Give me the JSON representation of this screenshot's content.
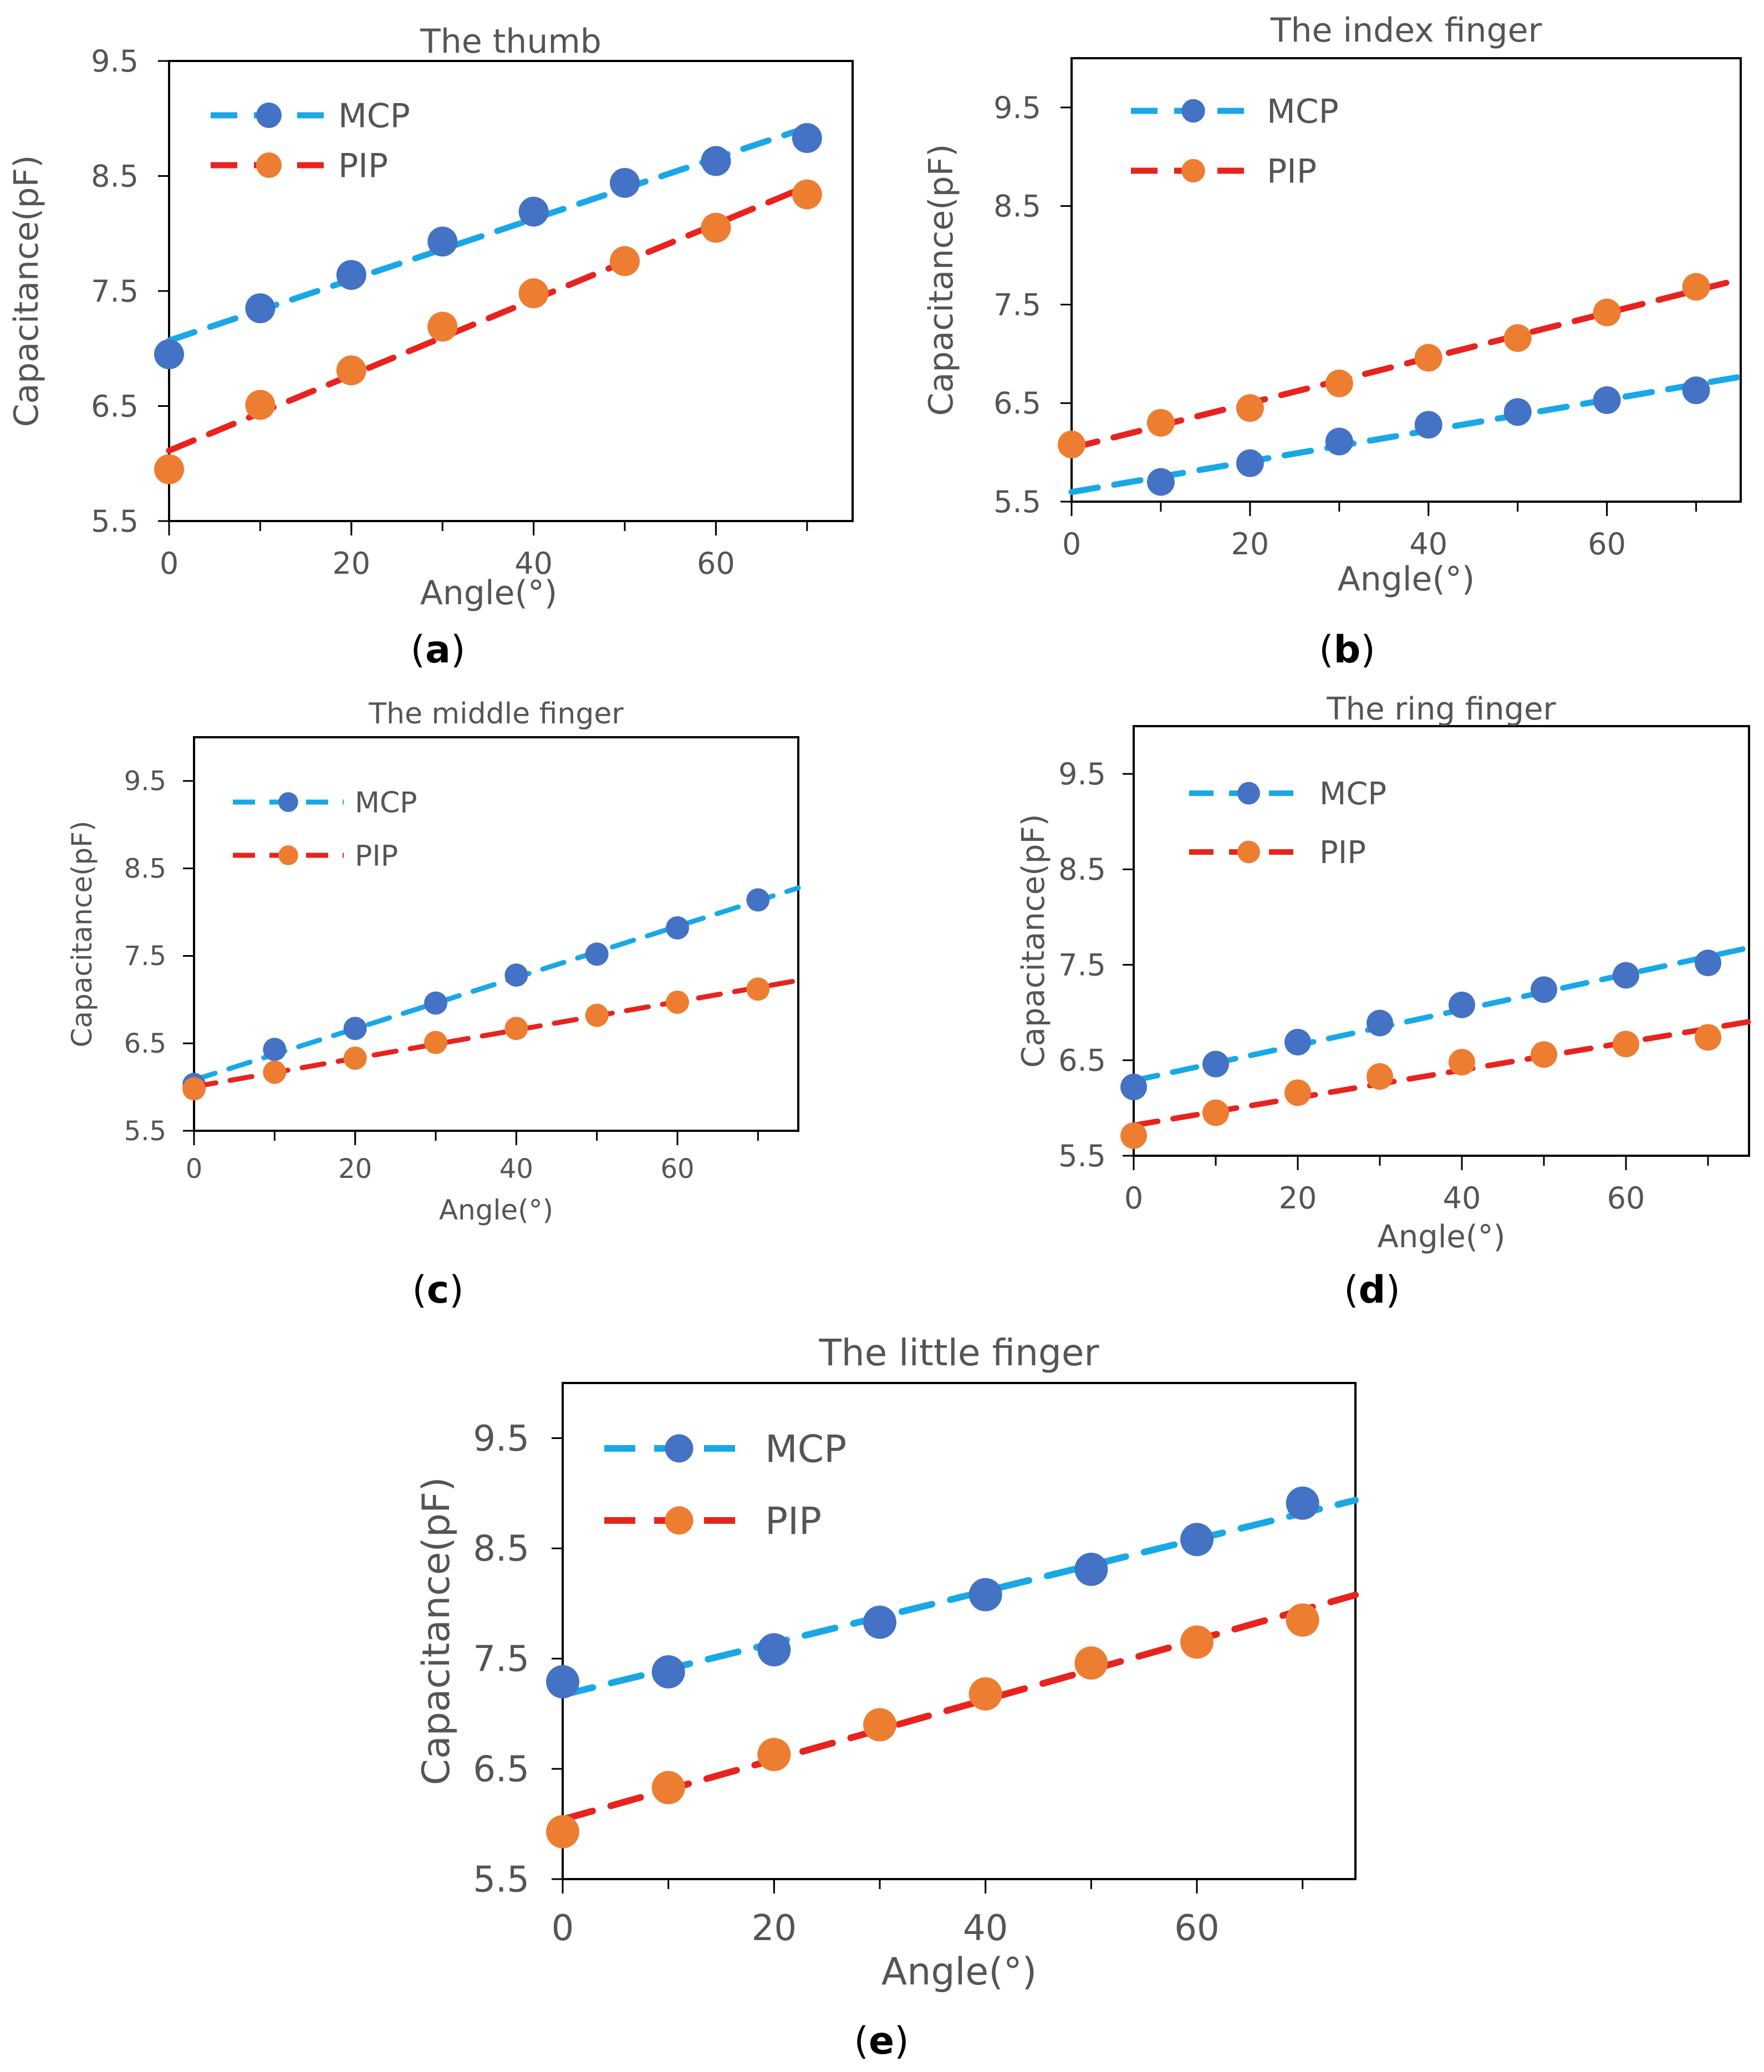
{
  "figure": {
    "panel_labels": [
      "a",
      "b",
      "c",
      "d",
      "e"
    ]
  },
  "chart_data": [
    {
      "type": "scatter",
      "panel": "a",
      "title": "The thumb",
      "xlabel": "Angle(°)",
      "ylabel": "Capacitance(pF)",
      "xlim": [
        0,
        75
      ],
      "ylim": [
        5.5,
        9.5
      ],
      "xticks": [
        "0",
        "20",
        "40",
        "60"
      ],
      "yticks": [
        "5.5",
        "6.5",
        "7.5",
        "8.5",
        "9.5"
      ],
      "x": [
        0,
        10,
        20,
        30,
        40,
        50,
        60,
        70
      ],
      "legend_position": "top-left",
      "series": [
        {
          "name": "MCP",
          "marker_color": "#4472c4",
          "line_color": "#19a8e6",
          "values": [
            6.95,
            7.35,
            7.64,
            7.93,
            8.19,
            8.44,
            8.63,
            8.83
          ]
        },
        {
          "name": "PIP",
          "marker_color": "#ed7d31",
          "line_color": "#e8231e",
          "values": [
            5.95,
            6.51,
            6.81,
            7.19,
            7.48,
            7.76,
            8.05,
            8.34
          ]
        }
      ]
    },
    {
      "type": "scatter",
      "panel": "b",
      "title": "The index finger",
      "xlabel": "Angle(°)",
      "ylabel": "Capacitance(pF)",
      "xlim": [
        0,
        75
      ],
      "ylim": [
        5.5,
        10
      ],
      "xticks": [
        "0",
        "20",
        "40",
        "60"
      ],
      "yticks": [
        "5.5",
        "6.5",
        "7.5",
        "8.5",
        "9.5"
      ],
      "x": [
        0,
        10,
        20,
        30,
        40,
        50,
        60,
        70
      ],
      "legend_position": "top-left",
      "series": [
        {
          "name": "MCP",
          "marker_color": "#4472c4",
          "line_color": "#19a8e6",
          "values": [
            null,
            5.7,
            5.89,
            6.11,
            6.28,
            6.41,
            6.53,
            6.63
          ]
        },
        {
          "name": "PIP",
          "marker_color": "#ed7d31",
          "line_color": "#e8231e",
          "values": [
            6.08,
            6.3,
            6.45,
            6.7,
            6.96,
            7.16,
            7.42,
            7.68
          ]
        }
      ]
    },
    {
      "type": "scatter",
      "panel": "c",
      "title": "The middle finger",
      "xlabel": "Angle(°)",
      "ylabel": "Capacitance(pF)",
      "xlim": [
        0,
        75
      ],
      "ylim": [
        5.5,
        10
      ],
      "xticks": [
        "0",
        "20",
        "40",
        "60"
      ],
      "yticks": [
        "5.5",
        "6.5",
        "7.5",
        "8.5",
        "9.5"
      ],
      "x": [
        0,
        10,
        20,
        30,
        40,
        50,
        60,
        70
      ],
      "legend_position": "top-left",
      "series": [
        {
          "name": "MCP",
          "marker_color": "#4472c4",
          "line_color": "#19a8e6",
          "values": [
            6.03,
            6.43,
            6.67,
            6.96,
            7.28,
            7.52,
            7.82,
            8.14
          ]
        },
        {
          "name": "PIP",
          "marker_color": "#ed7d31",
          "line_color": "#e8231e",
          "values": [
            5.98,
            6.17,
            6.33,
            6.51,
            6.67,
            6.82,
            6.97,
            7.12
          ]
        }
      ]
    },
    {
      "type": "scatter",
      "panel": "d",
      "title": "The ring finger",
      "xlabel": "Angle(°)",
      "ylabel": "Capacitance(pF)",
      "xlim": [
        0,
        75
      ],
      "ylim": [
        5.5,
        10
      ],
      "xticks": [
        "0",
        "20",
        "40",
        "60"
      ],
      "yticks": [
        "5.5",
        "6.5",
        "7.5",
        "8.5",
        "9.5"
      ],
      "x": [
        0,
        10,
        20,
        30,
        40,
        50,
        60,
        70
      ],
      "legend_position": "top-left",
      "series": [
        {
          "name": "MCP",
          "marker_color": "#4472c4",
          "line_color": "#19a8e6",
          "values": [
            6.22,
            6.46,
            6.69,
            6.89,
            7.08,
            7.24,
            7.39,
            7.52
          ]
        },
        {
          "name": "PIP",
          "marker_color": "#ed7d31",
          "line_color": "#e8231e",
          "values": [
            5.71,
            5.95,
            6.16,
            6.33,
            6.48,
            6.56,
            6.67,
            6.74
          ]
        }
      ]
    },
    {
      "type": "scatter",
      "panel": "e",
      "title": "The little finger",
      "xlabel": "Angle(°)",
      "ylabel": "Capacitance(pF)",
      "xlim": [
        0,
        75
      ],
      "ylim": [
        5.5,
        10
      ],
      "xticks": [
        "0",
        "20",
        "40",
        "60"
      ],
      "yticks": [
        "5.5",
        "6.5",
        "7.5",
        "8.5",
        "9.5"
      ],
      "x": [
        0,
        10,
        20,
        30,
        40,
        50,
        60,
        70
      ],
      "legend_position": "top-left",
      "series": [
        {
          "name": "MCP",
          "marker_color": "#4472c4",
          "line_color": "#19a8e6",
          "values": [
            7.29,
            7.38,
            7.58,
            7.83,
            8.08,
            8.31,
            8.58,
            8.91
          ]
        },
        {
          "name": "PIP",
          "marker_color": "#ed7d31",
          "line_color": "#e8231e",
          "values": [
            5.93,
            6.33,
            6.63,
            6.9,
            7.18,
            7.46,
            7.65,
            7.85
          ]
        }
      ]
    }
  ]
}
